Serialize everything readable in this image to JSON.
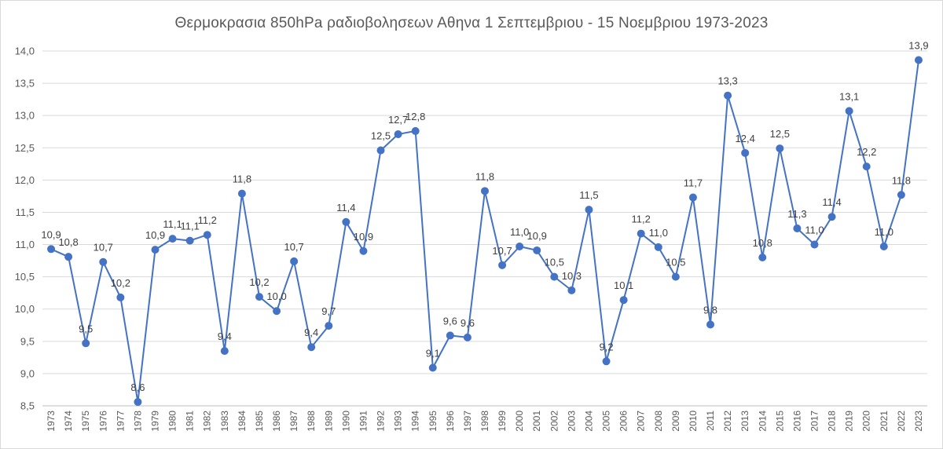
{
  "chart_data": {
    "type": "line",
    "title": "Θερμοκρασια 850hPa ραδιοβολησεων Αθηνα 1 Σεπτεμβριου - 15 Νοεμβριου 1973-2023",
    "xlabel": "",
    "ylabel": "",
    "ylim": [
      8.5,
      14.0
    ],
    "y_ticks": [
      "8,5",
      "9,0",
      "9,5",
      "10,0",
      "10,5",
      "11,0",
      "11,5",
      "12,0",
      "12,5",
      "13,0",
      "13,5",
      "14,0"
    ],
    "grid": "horizontal",
    "line_color": "#4472c4",
    "categories": [
      "1973",
      "1974",
      "1975",
      "1976",
      "1977",
      "1978",
      "1979",
      "1980",
      "1981",
      "1982",
      "1983",
      "1984",
      "1985",
      "1986",
      "1987",
      "1988",
      "1989",
      "1990",
      "1991",
      "1992",
      "1993",
      "1994",
      "1995",
      "1996",
      "1997",
      "1998",
      "1999",
      "2000",
      "2001",
      "2002",
      "2003",
      "2004",
      "2005",
      "2006",
      "2007",
      "2008",
      "2009",
      "2010",
      "2011",
      "2012",
      "2013",
      "2014",
      "2015",
      "2016",
      "2017",
      "2018",
      "2019",
      "2020",
      "2021",
      "2022",
      "2023"
    ],
    "values": [
      10.93,
      10.81,
      9.47,
      10.73,
      10.18,
      8.56,
      10.92,
      11.09,
      11.06,
      11.15,
      9.35,
      11.79,
      10.19,
      9.97,
      10.74,
      9.41,
      9.74,
      11.35,
      10.9,
      12.46,
      12.71,
      12.76,
      9.09,
      9.59,
      9.56,
      11.83,
      10.68,
      10.97,
      10.91,
      10.5,
      10.29,
      11.54,
      9.19,
      10.14,
      11.17,
      10.96,
      10.5,
      11.73,
      9.76,
      13.31,
      12.42,
      10.8,
      12.49,
      11.25,
      11.0,
      11.43,
      13.07,
      12.21,
      10.97,
      11.77,
      13.86
    ],
    "data_labels": [
      "10,9",
      "10,8",
      "9,5",
      "10,7",
      "10,2",
      "8,6",
      "10,9",
      "11,1",
      "11,1",
      "11,2",
      "9,4",
      "11,8",
      "10,2",
      "10,0",
      "10,7",
      "9,4",
      "9,7",
      "11,4",
      "10,9",
      "12,5",
      "12,7",
      "12,8",
      "9,1",
      "9,6",
      "9,6",
      "11,8",
      "10,7",
      "11,0",
      "10,9",
      "10,5",
      "10,3",
      "11,5",
      "9,2",
      "10,1",
      "11,2",
      "11,0",
      "10,5",
      "11,7",
      "9,8",
      "13,3",
      "12,4",
      "10,8",
      "12,5",
      "11,3",
      "11,0",
      "11,4",
      "13,1",
      "12,2",
      "11,0",
      "11,8",
      "13,9"
    ]
  }
}
